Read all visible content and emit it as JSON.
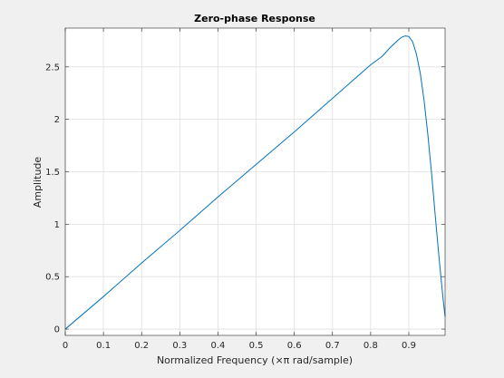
{
  "chart_data": {
    "type": "line",
    "title": "Zero-phase Response",
    "xlabel": "Normalized Frequency (×π rad/sample)",
    "ylabel": "Amplitude",
    "xlim": [
      0,
      0.995
    ],
    "ylim": [
      -0.06,
      2.87
    ],
    "xticks": [
      0,
      0.1,
      0.2,
      0.3,
      0.4,
      0.5,
      0.6,
      0.7,
      0.8,
      0.9
    ],
    "xtick_labels": [
      "0",
      "0.1",
      "0.2",
      "0.3",
      "0.4",
      "0.5",
      "0.6",
      "0.7",
      "0.8",
      "0.9"
    ],
    "yticks": [
      0,
      0.5,
      1,
      1.5,
      2,
      2.5
    ],
    "ytick_labels": [
      "0",
      "0.5",
      "1",
      "1.5",
      "2",
      "2.5"
    ],
    "grid": true,
    "colors": {
      "line": "#0072bd",
      "grid": "#dfdfdf",
      "axes": "#262626",
      "background": "#ffffff",
      "figure": "#f0f0f0"
    },
    "series": [
      {
        "x": [
          0,
          0.1,
          0.2,
          0.3,
          0.4,
          0.5,
          0.6,
          0.7,
          0.75,
          0.8,
          0.83,
          0.85,
          0.87,
          0.88,
          0.89,
          0.9,
          0.91,
          0.92,
          0.93,
          0.94,
          0.95,
          0.96,
          0.97,
          0.98,
          0.99,
          0.995
        ],
        "y": [
          0,
          0.31,
          0.63,
          0.94,
          1.26,
          1.57,
          1.88,
          2.2,
          2.36,
          2.52,
          2.6,
          2.68,
          2.75,
          2.78,
          2.795,
          2.79,
          2.74,
          2.62,
          2.44,
          2.18,
          1.85,
          1.47,
          1.05,
          0.65,
          0.28,
          0.12
        ]
      }
    ]
  }
}
